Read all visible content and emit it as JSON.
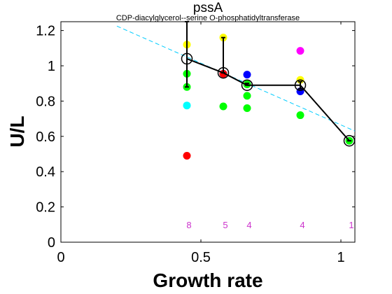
{
  "chart_data": {
    "type": "scatter",
    "title": "pssA",
    "subtitle": "CDP-diacylglycerol--serine O-phosphatidyltransferase",
    "xlabel": "Growth rate",
    "ylabel": "U/L",
    "xlim": [
      0,
      1.05
    ],
    "ylim": [
      0,
      1.25
    ],
    "xticks": [
      0,
      0.5,
      1
    ],
    "xtick_labels": [
      "0",
      "0.5",
      "1"
    ],
    "yticks": [
      0,
      0.2,
      0.4,
      0.6,
      0.8,
      1,
      1.2
    ],
    "ytick_labels": [
      "0",
      "0.2",
      "0.4",
      "0.6",
      "0.8",
      "1",
      "1.2"
    ],
    "grid": false,
    "points": [
      {
        "x": 0.45,
        "y": 1.12,
        "color": "#ffff00"
      },
      {
        "x": 0.45,
        "y": 0.955,
        "color": "#00ff00"
      },
      {
        "x": 0.45,
        "y": 0.88,
        "color": "#00ff00"
      },
      {
        "x": 0.45,
        "y": 0.775,
        "color": "#00ffff"
      },
      {
        "x": 0.45,
        "y": 0.49,
        "color": "#ff0000"
      },
      {
        "x": 0.58,
        "y": 1.16,
        "color": "#ffff00"
      },
      {
        "x": 0.58,
        "y": 0.955,
        "color": "#0000ff"
      },
      {
        "x": 0.58,
        "y": 0.955,
        "color": "#ff0000"
      },
      {
        "x": 0.58,
        "y": 0.77,
        "color": "#00ff00"
      },
      {
        "x": 0.665,
        "y": 0.95,
        "color": "#0000ff"
      },
      {
        "x": 0.665,
        "y": 0.895,
        "color": "#00ff00"
      },
      {
        "x": 0.665,
        "y": 0.83,
        "color": "#00ff00"
      },
      {
        "x": 0.665,
        "y": 0.76,
        "color": "#00ff00"
      },
      {
        "x": 0.855,
        "y": 1.085,
        "color": "#ff00ff"
      },
      {
        "x": 0.855,
        "y": 0.92,
        "color": "#ffff00"
      },
      {
        "x": 0.855,
        "y": 0.855,
        "color": "#0000ff"
      },
      {
        "x": 0.855,
        "y": 0.72,
        "color": "#00ff00"
      },
      {
        "x": 1.03,
        "y": 0.575,
        "color": "#00ff00"
      }
    ],
    "mean_line": {
      "x": [
        0.45,
        0.58,
        0.665,
        0.855,
        1.03
      ],
      "y": [
        1.04,
        0.96,
        0.89,
        0.89,
        0.575
      ],
      "yerr_upper": [
        1.25,
        1.16,
        0.9,
        0.91,
        0.575
      ],
      "yerr_lower": [
        0.88,
        0.96,
        0.89,
        0.87,
        0.575
      ]
    },
    "fit_line": {
      "x": [
        0.2,
        1.05
      ],
      "y": [
        1.225,
        0.63
      ],
      "color": "#00ccff"
    },
    "counts": [
      {
        "x": 0.45,
        "label": "8"
      },
      {
        "x": 0.58,
        "label": "5"
      },
      {
        "x": 0.665,
        "label": "4"
      },
      {
        "x": 0.855,
        "label": "4"
      },
      {
        "x": 1.03,
        "label": "1"
      }
    ],
    "count_y": 0.1,
    "count_color": "#cc33cc"
  }
}
